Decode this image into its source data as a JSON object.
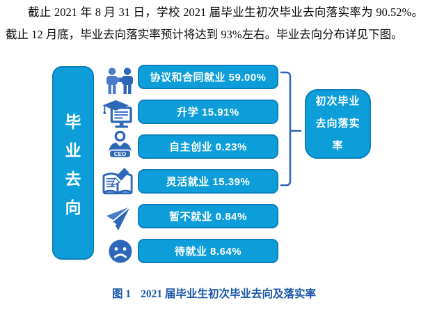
{
  "paragraph": {
    "text": "截止 2021 年 8 月 31 日，学校 2021 届毕业生初次毕业去向落实率为 90.52%。截止 12 月底，毕业去向落实率预计将达到 93%左右。毕业去向分布详见下图。"
  },
  "figure": {
    "side_label": "毕业去向",
    "rows": [
      {
        "icon": "handshake-icon",
        "label": "协议和合同就业 59.00%"
      },
      {
        "icon": "graduation-monitor-icon",
        "label": "升学 15.91%"
      },
      {
        "icon": "ceo-person-icon",
        "label": "自主创业 0.23%"
      },
      {
        "icon": "book-pencil-icon",
        "label": "灵活就业 15.39%"
      },
      {
        "icon": "paper-plane-icon",
        "label": "暂不就业 0.84%"
      },
      {
        "icon": "sad-face-icon",
        "label": "待就业 8.64%"
      }
    ],
    "ceo_badge_text": "CEO",
    "summary_box": {
      "full_text": "初次毕业去向落实率",
      "lines": [
        "初次毕业",
        "去向落实",
        "率"
      ]
    }
  },
  "caption": {
    "figure_label": "图 1",
    "text": "2021 届毕业生初次毕业去向及落实率"
  },
  "colors": {
    "bar_fill": "#0d9ed9",
    "bar_border": "#0c7fc0",
    "icon_blue": "#2e66b8",
    "icon_blue_light": "#4a7cc9",
    "caption_blue": "#1a56a8",
    "text_black": "#0a0a0a"
  },
  "chart_data": {
    "type": "bar",
    "title": "2021届毕业生初次毕业去向及落实率",
    "categories": [
      "协议和合同就业",
      "升学",
      "自主创业",
      "灵活就业",
      "暂不就业",
      "待就业"
    ],
    "values": [
      59.0,
      15.91,
      0.23,
      15.39,
      0.84,
      8.64
    ],
    "unit": "%",
    "grouped_categories_under_summary": [
      "协议和合同就业",
      "升学",
      "自主创业",
      "灵活就业"
    ],
    "summary_label": "初次毕业去向落实率",
    "initial_placement_rate_pct": 90.52,
    "projected_rate_by_december_pct": 93
  }
}
